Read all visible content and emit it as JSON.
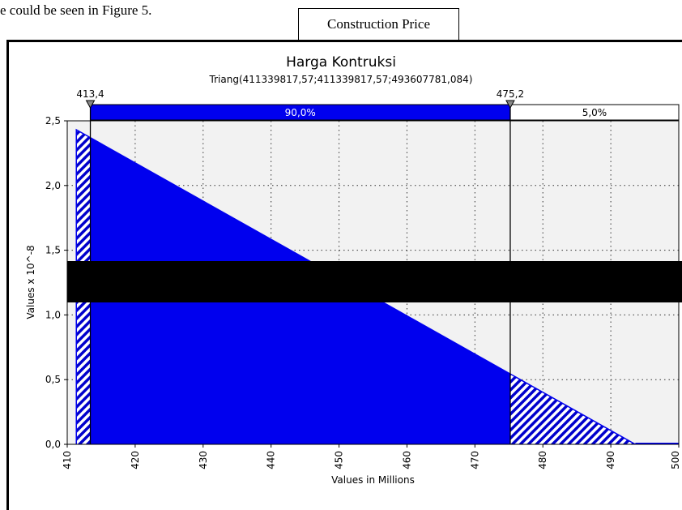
{
  "document": {
    "intro_text": "e could be seen in Figure 5.",
    "caption_label": "Construction Price"
  },
  "chart_data": {
    "type": "area",
    "title": "Harga Kontruksi",
    "subtitle": "Triang(411339817,57;411339817,57;493607781,084)",
    "xlabel": "Values in Millions",
    "ylabel": "Values x 10^-8",
    "xlim": [
      410,
      500
    ],
    "ylim": [
      0,
      2.5
    ],
    "x_ticks": [
      "410",
      "420",
      "430",
      "440",
      "450",
      "460",
      "470",
      "480",
      "490",
      "500"
    ],
    "y_ticks": [
      "0,0",
      "0,5",
      "1,0",
      "1,5",
      "2,0",
      "2,5"
    ],
    "grid": true,
    "distribution": {
      "kind": "triangular",
      "min_millions": 411.34,
      "mode_millions": 411.34,
      "max_millions": 493.61
    },
    "markers": {
      "left_value": 413.4,
      "right_value": 475.2,
      "left_label": "413,4",
      "right_label": "475,2"
    },
    "probability_bands": {
      "left_percent": 5.0,
      "middle_percent": 90.0,
      "right_percent": 5.0,
      "middle_label": "90,0%",
      "right_label": "5,0%"
    },
    "colors": {
      "fill": "#0000ee",
      "plot_background": "#f2f2f2",
      "hatch": "#0000cc",
      "redaction": "#000000"
    }
  }
}
